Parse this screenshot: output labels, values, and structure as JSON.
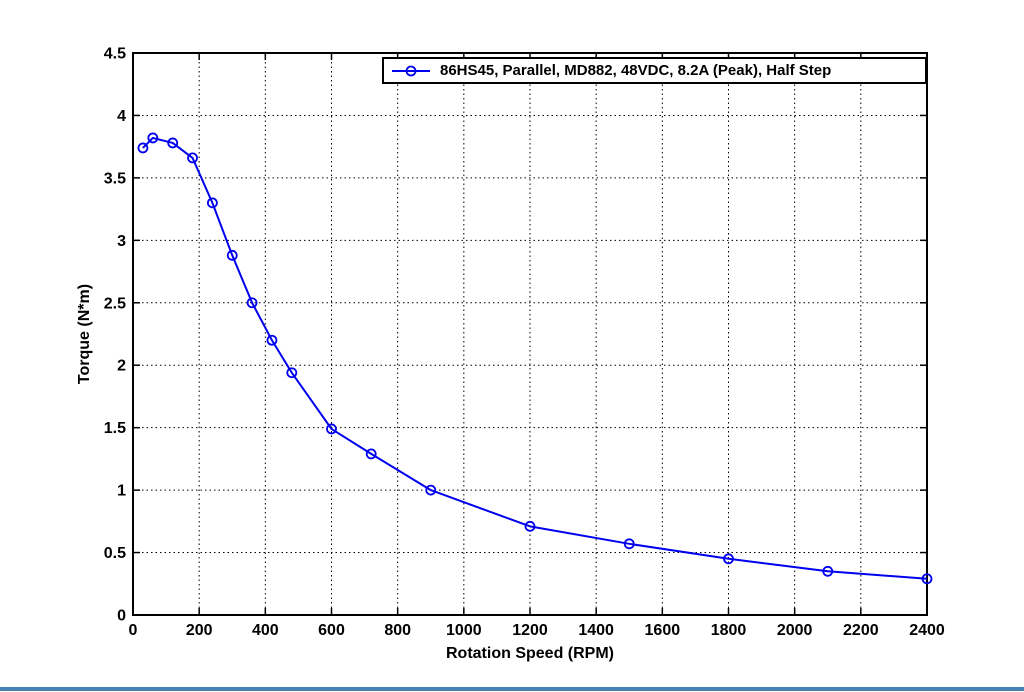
{
  "page": {
    "background": "#FFFFFF",
    "bottom_bar_color": "#4682B4"
  },
  "chart_data": {
    "type": "line",
    "title": "",
    "xlabel": "Rotation Speed (RPM)",
    "ylabel": "Torque (N*m)",
    "xlim": [
      0,
      2400
    ],
    "ylim": [
      0,
      4.5
    ],
    "x_ticks": [
      0,
      200,
      400,
      600,
      800,
      1000,
      1200,
      1400,
      1600,
      1800,
      2000,
      2200,
      2400
    ],
    "x_tick_labels": [
      "0",
      "200",
      "400",
      "600",
      "800",
      "1000",
      "1200",
      "1400",
      "1600",
      "1800",
      "2000",
      "2200",
      "2400"
    ],
    "y_ticks": [
      0,
      0.5,
      1,
      1.5,
      2,
      2.5,
      3,
      3.5,
      4,
      4.5
    ],
    "y_tick_labels": [
      "0",
      "0.5",
      "1",
      "1.5",
      "2",
      "2.5",
      "3",
      "3.5",
      "4",
      "4.5"
    ],
    "grid": "dotted",
    "legend_position": "top-center-inside",
    "axis_color": "#000000",
    "grid_color": "#000000",
    "series": [
      {
        "name": "86HS45, Parallel, MD882, 48VDC, 8.2A (Peak), Half Step",
        "color": "#0000EE",
        "marker": "circle-open",
        "x": [
          30,
          60,
          120,
          180,
          240,
          300,
          360,
          420,
          480,
          600,
          720,
          900,
          1200,
          1500,
          1800,
          2100,
          2400
        ],
        "y": [
          3.74,
          3.82,
          3.78,
          3.66,
          3.3,
          2.88,
          2.5,
          2.2,
          1.94,
          1.49,
          1.29,
          1.0,
          0.71,
          0.57,
          0.45,
          0.35,
          0.29
        ]
      }
    ]
  }
}
